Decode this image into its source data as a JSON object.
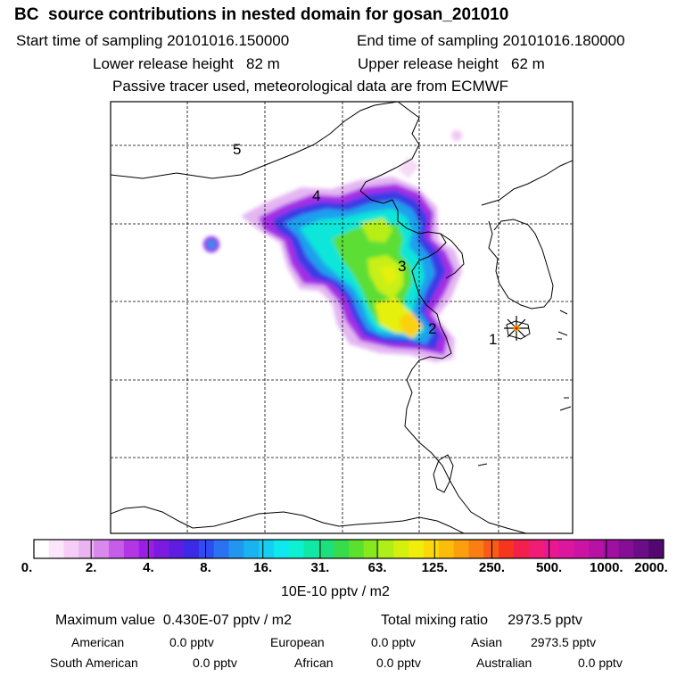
{
  "header": {
    "title": "BC  source contributions in nested domain for gosan_201010",
    "start_time": "Start time of sampling 20101016.150000",
    "end_time": "End time of sampling 20101016.180000",
    "lower_release": "Lower release height   82 m",
    "upper_release": "Upper release height   62 m",
    "tracer_note": "Passive tracer used, meteorological data are from ECMWF"
  },
  "map": {
    "release_markers": [
      {
        "label": "1"
      },
      {
        "label": "2"
      },
      {
        "label": "3"
      },
      {
        "label": "4"
      },
      {
        "label": "5"
      }
    ],
    "receptor_icon": "star-marker-icon"
  },
  "colorbar": {
    "tick_labels": [
      "0.",
      "2.",
      "4.",
      "8.",
      "16.",
      "31.",
      "63.",
      "125.",
      "250.",
      "500.",
      "1000.",
      "2000."
    ],
    "unit": "10E-10 pptv / m2",
    "colors": [
      "#ffffff",
      "#fbe6fb",
      "#f5cdf6",
      "#eab3f1",
      "#d988ec",
      "#c65de8",
      "#b236e6",
      "#9a1ee6",
      "#7d1ae0",
      "#5e1de0",
      "#3c2ae6",
      "#2f4cf2",
      "#2b72f3",
      "#2096f0",
      "#18b3f0",
      "#14cff2",
      "#0fe8ee",
      "#0df0d2",
      "#10e8a8",
      "#1ce07c",
      "#36dc4c",
      "#5ce02e",
      "#88e81e",
      "#b0ee1a",
      "#d6f00e",
      "#f2ee0c",
      "#fcd80a",
      "#fcbc0a",
      "#fba00c",
      "#fa7e12",
      "#f85a18",
      "#f4361e",
      "#f2204a",
      "#f01c76",
      "#ea1890",
      "#dd169e",
      "#cc14a4",
      "#b812a4",
      "#a010a0",
      "#860e96",
      "#6c0c86",
      "#52086e"
    ]
  },
  "stats": {
    "max_value": "Maximum value  0.430E-07 pptv / m2",
    "total_mixing": "Total mixing ratio     2973.5 pptv",
    "american_label": "American",
    "american_value": "0.0 pptv",
    "european_label": "European",
    "european_value": "0.0 pptv",
    "asian_label": "Asian",
    "asian_value": "2973.5 pptv",
    "south_american_label": "South American",
    "south_american_value": "0.0 pptv",
    "african_label": "African",
    "african_value": "0.0 pptv",
    "australian_label": "Australian",
    "australian_value": "0.0 pptv"
  }
}
